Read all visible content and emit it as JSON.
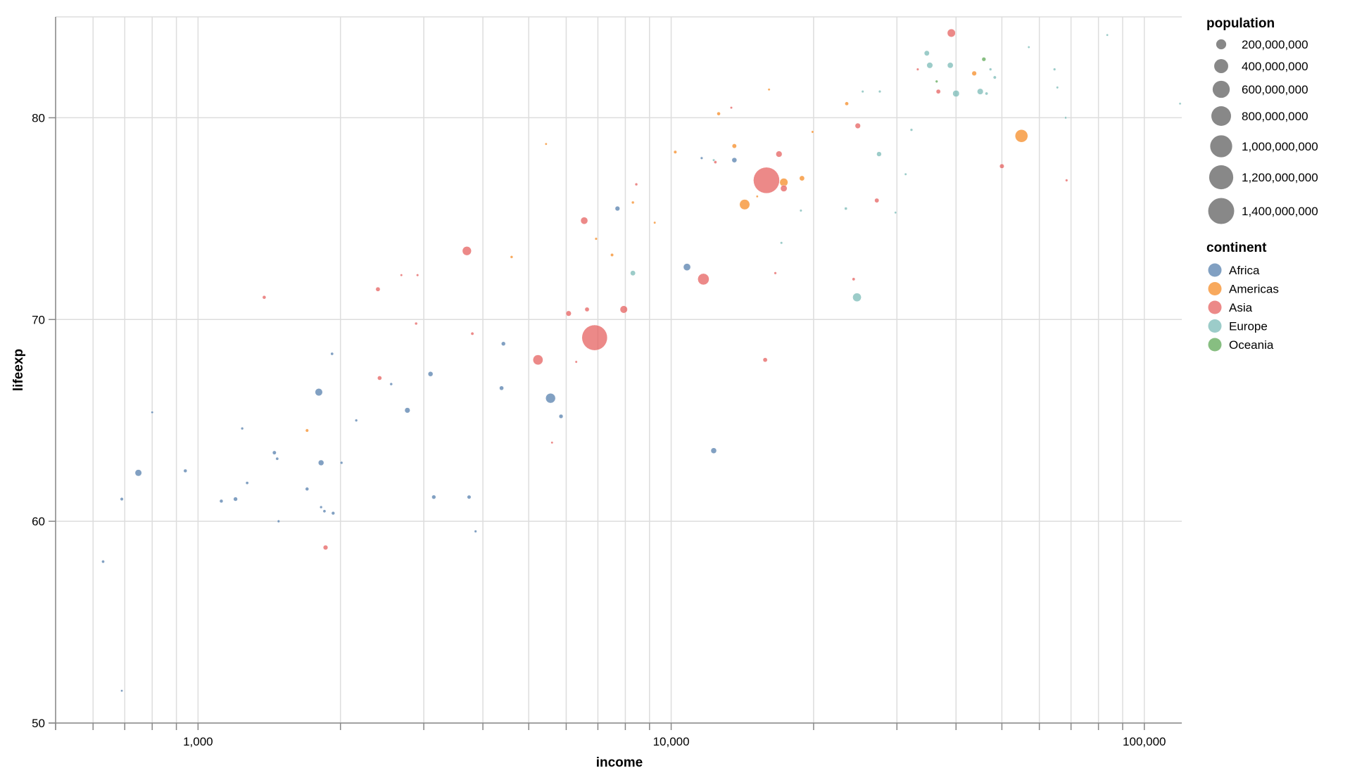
{
  "chart_data": {
    "type": "scatter",
    "title": "",
    "xlabel": "income",
    "ylabel": "lifeexp",
    "x_scale": "log",
    "xlim": [
      500,
      120000
    ],
    "ylim": [
      50,
      85
    ],
    "grid": true,
    "x_tick_labels": [
      "1,000",
      "10,000",
      "100,000"
    ],
    "x_tick_values": [
      1000,
      10000,
      100000
    ],
    "y_tick_labels": [
      "50",
      "60",
      "70",
      "80"
    ],
    "y_tick_values": [
      50,
      60,
      70,
      80
    ],
    "size_legend": {
      "title": "population",
      "values": [
        200000000,
        400000000,
        600000000,
        800000000,
        1000000000,
        1200000000,
        1400000000
      ],
      "labels": [
        "200,000,000",
        "400,000,000",
        "600,000,000",
        "800,000,000",
        "1,000,000,000",
        "1,200,000,000",
        "1,400,000,000"
      ]
    },
    "color_legend": {
      "title": "continent",
      "labels": [
        "Africa",
        "Americas",
        "Asia",
        "Europe",
        "Oceania"
      ],
      "colors": [
        "#4c78a8",
        "#f58518",
        "#e45756",
        "#72b7b2",
        "#54a24b"
      ]
    },
    "legend_position": "right",
    "point_fields": [
      "income",
      "lifeexp",
      "population",
      "continent"
    ],
    "points": [
      [
        15900,
        76.9,
        1410000000,
        "Asia"
      ],
      [
        6890,
        69.1,
        1340000000,
        "Asia"
      ],
      [
        11700,
        72.0,
        260000000,
        "Asia"
      ],
      [
        3700,
        73.4,
        160000000,
        "Asia"
      ],
      [
        5230,
        68.0,
        200000000,
        "Asia"
      ],
      [
        6550,
        74.9,
        95000000,
        "Asia"
      ],
      [
        7940,
        70.5,
        105000000,
        "Asia"
      ],
      [
        6070,
        70.3,
        50000000,
        "Asia"
      ],
      [
        6640,
        70.5,
        30000000,
        "Asia"
      ],
      [
        16900,
        78.2,
        69000000,
        "Asia"
      ],
      [
        17300,
        76.5,
        80000000,
        "Asia"
      ],
      [
        24800,
        79.6,
        51000000,
        "Asia"
      ],
      [
        39100,
        84.2,
        127000000,
        "Asia"
      ],
      [
        36700,
        81.3,
        30000000,
        "Asia"
      ],
      [
        50000,
        77.6,
        33000000,
        "Asia"
      ],
      [
        27200,
        75.9,
        31000000,
        "Asia"
      ],
      [
        24300,
        72.0,
        9000000,
        "Asia"
      ],
      [
        15800,
        68.0,
        30000000,
        "Asia"
      ],
      [
        2400,
        71.5,
        30000000,
        "Asia"
      ],
      [
        1380,
        71.1,
        16000000,
        "Asia"
      ],
      [
        2420,
        67.1,
        28000000,
        "Asia"
      ],
      [
        3800,
        69.3,
        9000000,
        "Asia"
      ],
      [
        2890,
        69.8,
        6000000,
        "Asia"
      ],
      [
        1860,
        58.7,
        36000000,
        "Asia"
      ],
      [
        12400,
        77.8,
        8000000,
        "Asia"
      ],
      [
        8440,
        76.7,
        6000000,
        "Asia"
      ],
      [
        16600,
        72.3,
        4000000,
        "Asia"
      ],
      [
        68500,
        76.9,
        4000000,
        "Asia"
      ],
      [
        33200,
        82.4,
        3000000,
        "Asia"
      ],
      [
        13400,
        80.5,
        2000000,
        "Asia"
      ],
      [
        2690,
        72.2,
        2000000,
        "Asia"
      ],
      [
        2910,
        72.2,
        3000000,
        "Asia"
      ],
      [
        6300,
        67.9,
        2000000,
        "Asia"
      ],
      [
        5600,
        63.9,
        1500000,
        "Asia"
      ],
      [
        5560,
        66.1,
        190000000,
        "Africa"
      ],
      [
        1800,
        66.4,
        105000000,
        "Africa"
      ],
      [
        748,
        62.4,
        82000000,
        "Africa"
      ],
      [
        10800,
        72.6,
        97000000,
        "Africa"
      ],
      [
        2770,
        65.5,
        50000000,
        "Africa"
      ],
      [
        3100,
        67.3,
        40000000,
        "Africa"
      ],
      [
        12300,
        63.5,
        57000000,
        "Africa"
      ],
      [
        13600,
        77.9,
        41000000,
        "Africa"
      ],
      [
        7700,
        75.5,
        36000000,
        "Africa"
      ],
      [
        4420,
        68.8,
        25000000,
        "Africa"
      ],
      [
        4380,
        66.6,
        28000000,
        "Africa"
      ],
      [
        5850,
        65.2,
        25000000,
        "Africa"
      ],
      [
        3740,
        61.2,
        20000000,
        "Africa"
      ],
      [
        3150,
        61.2,
        24000000,
        "Africa"
      ],
      [
        1820,
        62.9,
        55000000,
        "Africa"
      ],
      [
        1700,
        61.6,
        15000000,
        "Africa"
      ],
      [
        1200,
        61.1,
        25000000,
        "Africa"
      ],
      [
        1120,
        61.0,
        15000000,
        "Africa"
      ],
      [
        940,
        62.5,
        15000000,
        "Africa"
      ],
      [
        630,
        58.0,
        8000000,
        "Africa"
      ],
      [
        690,
        61.1,
        11000000,
        "Africa"
      ],
      [
        1450,
        63.4,
        20000000,
        "Africa"
      ],
      [
        1470,
        63.1,
        8000000,
        "Africa"
      ],
      [
        1930,
        60.4,
        13000000,
        "Africa"
      ],
      [
        1850,
        60.5,
        8000000,
        "Africa"
      ],
      [
        1820,
        60.7,
        5000000,
        "Africa"
      ],
      [
        1480,
        60.0,
        5000000,
        "Africa"
      ],
      [
        3860,
        59.5,
        4000000,
        "Africa"
      ],
      [
        1270,
        61.9,
        7000000,
        "Africa"
      ],
      [
        1240,
        64.6,
        5000000,
        "Africa"
      ],
      [
        1920,
        68.3,
        7000000,
        "Africa"
      ],
      [
        2560,
        66.8,
        6000000,
        "Africa"
      ],
      [
        2160,
        65.0,
        5000000,
        "Africa"
      ],
      [
        2010,
        62.9,
        6000000,
        "Africa"
      ],
      [
        11600,
        78.0,
        4000000,
        "Africa"
      ],
      [
        800,
        65.4,
        1800000,
        "Africa"
      ],
      [
        690,
        51.6,
        1000000,
        "Africa"
      ],
      [
        55000,
        79.1,
        325000000,
        "Americas"
      ],
      [
        14300,
        75.7,
        209000000,
        "Americas"
      ],
      [
        17300,
        76.8,
        129000000,
        "Americas"
      ],
      [
        18900,
        77.0,
        44000000,
        "Americas"
      ],
      [
        13600,
        78.6,
        31000000,
        "Americas"
      ],
      [
        12600,
        80.2,
        16000000,
        "Americas"
      ],
      [
        23500,
        80.7,
        18000000,
        "Americas"
      ],
      [
        43700,
        82.2,
        36000000,
        "Americas"
      ],
      [
        10200,
        78.3,
        11000000,
        "Americas"
      ],
      [
        7500,
        73.2,
        10000000,
        "Americas"
      ],
      [
        6940,
        74.0,
        4000000,
        "Americas"
      ],
      [
        8300,
        75.8,
        6000000,
        "Americas"
      ],
      [
        9230,
        74.8,
        2000000,
        "Americas"
      ],
      [
        4600,
        73.1,
        6000000,
        "Americas"
      ],
      [
        1700,
        64.5,
        11000000,
        "Americas"
      ],
      [
        5440,
        78.7,
        1000000,
        "Americas"
      ],
      [
        16100,
        81.4,
        1500000,
        "Americas"
      ],
      [
        19900,
        79.3,
        3000000,
        "Americas"
      ],
      [
        15200,
        76.1,
        1000000,
        "Americas"
      ],
      [
        24700,
        71.1,
        144000000,
        "Europe"
      ],
      [
        40000,
        81.2,
        82000000,
        "Europe"
      ],
      [
        45000,
        81.3,
        66000000,
        "Europe"
      ],
      [
        35200,
        82.6,
        65000000,
        "Europe"
      ],
      [
        38900,
        82.6,
        60000000,
        "Europe"
      ],
      [
        34700,
        83.2,
        46000000,
        "Europe"
      ],
      [
        8300,
        72.3,
        44000000,
        "Europe"
      ],
      [
        27500,
        78.2,
        38000000,
        "Europe"
      ],
      [
        23400,
        75.5,
        7000000,
        "Europe"
      ],
      [
        48300,
        82.0,
        10000000,
        "Europe"
      ],
      [
        46400,
        81.2,
        8000000,
        "Europe"
      ],
      [
        47300,
        82.4,
        5000000,
        "Europe"
      ],
      [
        25400,
        81.3,
        3000000,
        "Europe"
      ],
      [
        27600,
        81.3,
        4000000,
        "Europe"
      ],
      [
        32200,
        79.4,
        5000000,
        "Europe"
      ],
      [
        64600,
        82.4,
        4000000,
        "Europe"
      ],
      [
        65500,
        81.5,
        2000000,
        "Europe"
      ],
      [
        29800,
        75.3,
        1500000,
        "Europe"
      ],
      [
        31300,
        77.2,
        2000000,
        "Europe"
      ],
      [
        119000,
        80.7,
        600000,
        "Europe"
      ],
      [
        12300,
        77.9,
        2000000,
        "Europe"
      ],
      [
        18800,
        75.4,
        3000000,
        "Europe"
      ],
      [
        17100,
        73.8,
        3000000,
        "Europe"
      ],
      [
        57000,
        83.5,
        1000000,
        "Europe"
      ],
      [
        83500,
        84.1,
        600000,
        "Europe"
      ],
      [
        68200,
        80.0,
        1000000,
        "Europe"
      ],
      [
        45800,
        82.9,
        24000000,
        "Oceania"
      ],
      [
        36400,
        81.8,
        4700000,
        "Oceania"
      ]
    ]
  }
}
